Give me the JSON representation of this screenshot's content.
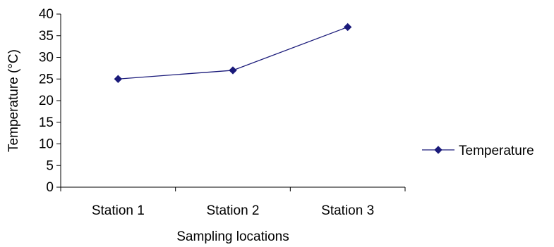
{
  "chart_data": {
    "type": "line",
    "categories": [
      "Station 1",
      "Station 2",
      "Station 3"
    ],
    "series": [
      {
        "name": "Temperature",
        "values": [
          25,
          27,
          37
        ],
        "color": "#1a1a7a",
        "marker": "diamond"
      }
    ],
    "xlabel": "Sampling locations",
    "ylabel": "Temperature (°C)",
    "ylim": [
      0,
      40
    ],
    "yticks": [
      0,
      5,
      10,
      15,
      20,
      25,
      30,
      35,
      40
    ],
    "grid": false,
    "legend": "right"
  }
}
